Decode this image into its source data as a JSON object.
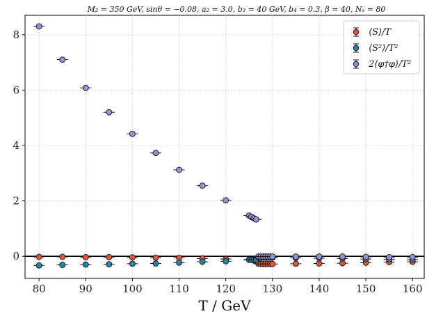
{
  "chart_data": {
    "type": "scatter",
    "title": "M₂ = 350 GeV, sinθ = −0.08, a₂ = 3.0, b₃ = 40 GeV, b₄ = 0.3, β = 40, Nₛ = 80",
    "xlabel": "T / GeV",
    "ylabel": "",
    "xlim": [
      77,
      162.5
    ],
    "ylim": [
      -0.8,
      8.7
    ],
    "xticks": [
      80,
      90,
      100,
      110,
      120,
      130,
      140,
      150,
      160
    ],
    "yticks": [
      0,
      2,
      4,
      6,
      8
    ],
    "grid": true,
    "legend_position": "top-right",
    "series": [
      {
        "name": "⟨S⟩/T",
        "color": "#e0553a",
        "x": [
          80,
          85,
          90,
          95,
          100,
          105,
          110,
          115,
          120,
          125,
          125.5,
          126,
          126.5,
          127,
          127.5,
          128,
          128.5,
          129,
          129.5,
          130,
          135,
          140,
          145,
          150,
          155,
          160
        ],
        "y": [
          -0.02,
          -0.02,
          -0.03,
          -0.03,
          -0.04,
          -0.05,
          -0.06,
          -0.08,
          -0.1,
          -0.12,
          -0.13,
          -0.14,
          -0.15,
          -0.27,
          -0.28,
          -0.28,
          -0.28,
          -0.28,
          -0.28,
          -0.28,
          -0.27,
          -0.26,
          -0.25,
          -0.23,
          -0.21,
          -0.2
        ]
      },
      {
        "name": "⟨S²⟩/T²",
        "color": "#2a83a8",
        "x": [
          80,
          85,
          90,
          95,
          100,
          105,
          110,
          115,
          120,
          125,
          125.5,
          126,
          126.5,
          127,
          127.5,
          128,
          128.5,
          129,
          129.5,
          130,
          135,
          140,
          145,
          150,
          155,
          160
        ],
        "y": [
          -0.33,
          -0.31,
          -0.3,
          -0.29,
          -0.27,
          -0.26,
          -0.23,
          -0.2,
          -0.18,
          -0.13,
          -0.13,
          -0.12,
          -0.12,
          -0.05,
          -0.05,
          -0.05,
          -0.05,
          -0.05,
          -0.05,
          -0.05,
          -0.06,
          -0.07,
          -0.08,
          -0.1,
          -0.11,
          -0.12
        ]
      },
      {
        "name": "2⟨φ†φ⟩/T²",
        "color": "#9b8fd8",
        "x": [
          80,
          85,
          90,
          95,
          100,
          105,
          110,
          115,
          120,
          125,
          125.5,
          126,
          126.5,
          127,
          127.5,
          128,
          128.5,
          129,
          129.5,
          130,
          135,
          140,
          145,
          150,
          155,
          160
        ],
        "y": [
          8.3,
          7.1,
          6.08,
          5.2,
          4.42,
          3.73,
          3.12,
          2.55,
          2.02,
          1.47,
          1.42,
          1.37,
          1.33,
          -0.01,
          -0.01,
          -0.01,
          -0.01,
          -0.01,
          -0.01,
          -0.01,
          -0.01,
          -0.01,
          -0.01,
          -0.02,
          -0.03,
          -0.03
        ]
      }
    ]
  }
}
